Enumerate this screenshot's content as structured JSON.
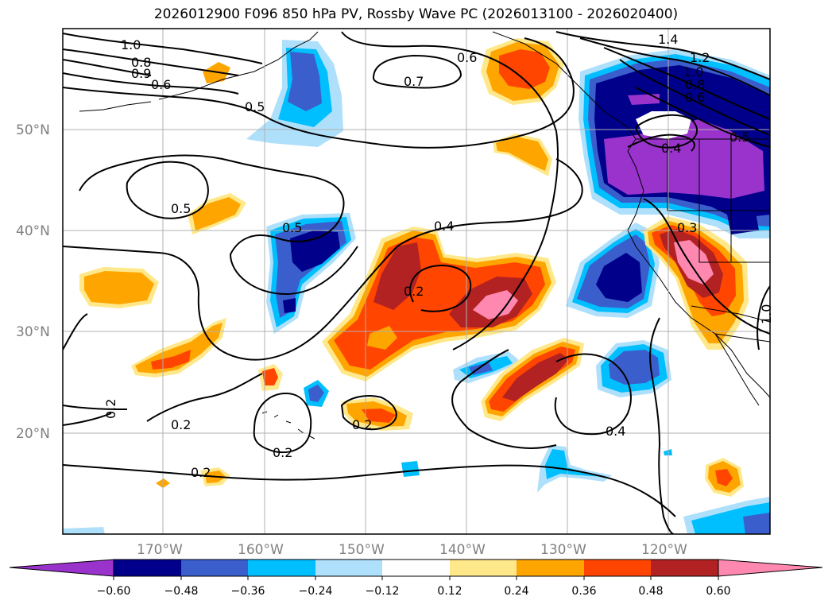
{
  "title": "2026012900 F096 850 hPa PV, Rossby Wave PC (2026013100 - 2026020400)",
  "map": {
    "latitude_labels": [
      "50°N",
      "40°N",
      "30°N",
      "20°N"
    ],
    "longitude_labels": [
      "170°W",
      "160°W",
      "150°W",
      "140°W",
      "130°W",
      "120°W"
    ],
    "contour_labels": [
      "1.0",
      "0.8",
      "0.9",
      "0.6",
      "0.5",
      "0.7",
      "0.6",
      "1.4",
      "1.2",
      "1.0",
      "0.8",
      "0.6",
      "0.5",
      "0.4",
      "0.5",
      "0.5",
      "0.4",
      "0.2",
      "0.3",
      "0.2",
      "0.2",
      "0.2",
      "0.2",
      "0.2",
      "0.4",
      "1.0"
    ]
  },
  "colorbar": {
    "tick_labels": [
      "−0.60",
      "−0.48",
      "−0.36",
      "−0.24",
      "−0.12",
      "0.12",
      "0.24",
      "0.36",
      "0.48",
      "0.60"
    ],
    "colors": [
      "#9933cc",
      "#00008b",
      "#3a5ecc",
      "#00bfff",
      "#aee0fb",
      "#ffffff",
      "#ffe88a",
      "#ffa500",
      "#ff4500",
      "#b22222",
      "#ff88b0"
    ]
  }
}
